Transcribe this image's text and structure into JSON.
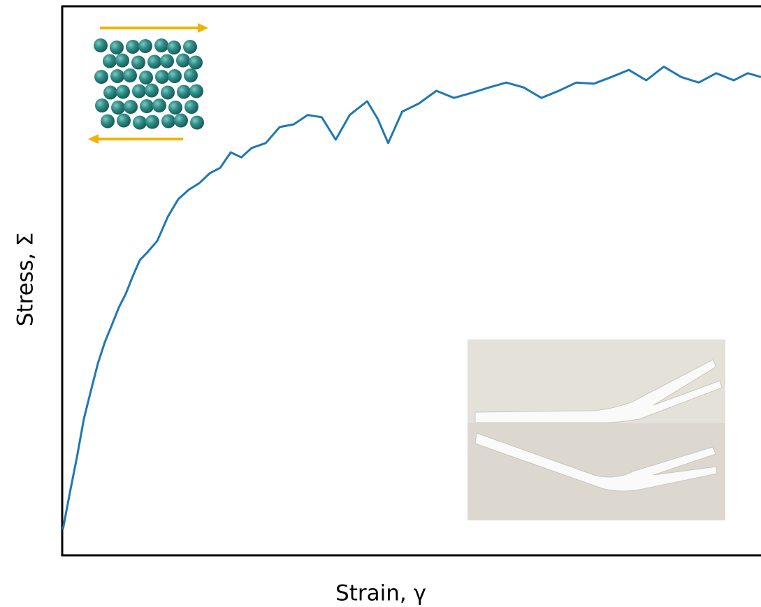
{
  "chart_data": {
    "type": "line",
    "x_label": "Strain, γ",
    "y_label": "Stress, Σ",
    "xlim": [
      0,
      100
    ],
    "ylim": [
      0,
      100
    ],
    "x": [
      0.2,
      1.2,
      2.2,
      3.2,
      4.2,
      5.2,
      6.2,
      7.2,
      8.2,
      9.2,
      10.2,
      11.2,
      12.2,
      13.7,
      15.2,
      16.7,
      18.2,
      19.7,
      21.2,
      22.7,
      24.2,
      25.7,
      27.2,
      29.2,
      31.2,
      33.2,
      35.2,
      37.2,
      39.2,
      41.2,
      43.7,
      45.2,
      46.7,
      48.7,
      51.1,
      53.6,
      56.1,
      58.6,
      61.1,
      63.6,
      66.1,
      68.6,
      71.1,
      73.6,
      76.1,
      78.6,
      81.1,
      83.6,
      86.1,
      88.6,
      91.1,
      93.6,
      96.1,
      98.1,
      100
    ],
    "series": [
      {
        "color": "#1f77b4",
        "values": [
          4.7,
          11.4,
          17.8,
          24.8,
          29.9,
          34.9,
          38.8,
          41.9,
          45.1,
          47.6,
          50.8,
          53.7,
          55.0,
          57.2,
          61.6,
          64.8,
          66.5,
          67.7,
          69.5,
          70.5,
          73.3,
          72.4,
          74.1,
          75.0,
          77.9,
          78.4,
          80.1,
          79.7,
          75.6,
          80.1,
          82.6,
          79.4,
          75.0,
          80.7,
          82.2,
          84.5,
          83.2,
          84.1,
          85.1,
          86.0,
          85.1,
          83.2,
          84.5,
          86.0,
          85.8,
          87.0,
          88.3,
          86.4,
          88.9,
          87.0,
          86.0,
          87.7,
          86.4,
          87.7,
          87.0
        ]
      }
    ]
  }
}
